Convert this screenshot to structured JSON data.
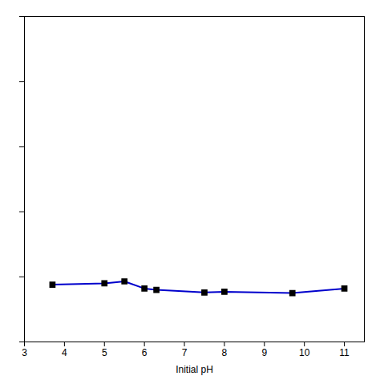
{
  "chart_data": {
    "type": "line",
    "x": [
      3.7,
      5.0,
      5.5,
      6.0,
      6.3,
      7.5,
      8.0,
      9.7,
      11.0
    ],
    "values": [
      0.88,
      0.9,
      0.93,
      0.82,
      0.8,
      0.76,
      0.77,
      0.75,
      0.82
    ],
    "color": "#0000CC",
    "marker": "square",
    "marker_color": "black",
    "xlabel": "Initial pH",
    "xlim": [
      3,
      11.5
    ],
    "xticks": [
      3,
      4,
      5,
      6,
      7,
      8,
      9,
      10,
      11
    ],
    "ylim": [
      0.0,
      5.0
    ],
    "yticks": [
      0,
      1,
      2,
      3,
      4,
      5
    ],
    "tick_labels": "x"
  }
}
